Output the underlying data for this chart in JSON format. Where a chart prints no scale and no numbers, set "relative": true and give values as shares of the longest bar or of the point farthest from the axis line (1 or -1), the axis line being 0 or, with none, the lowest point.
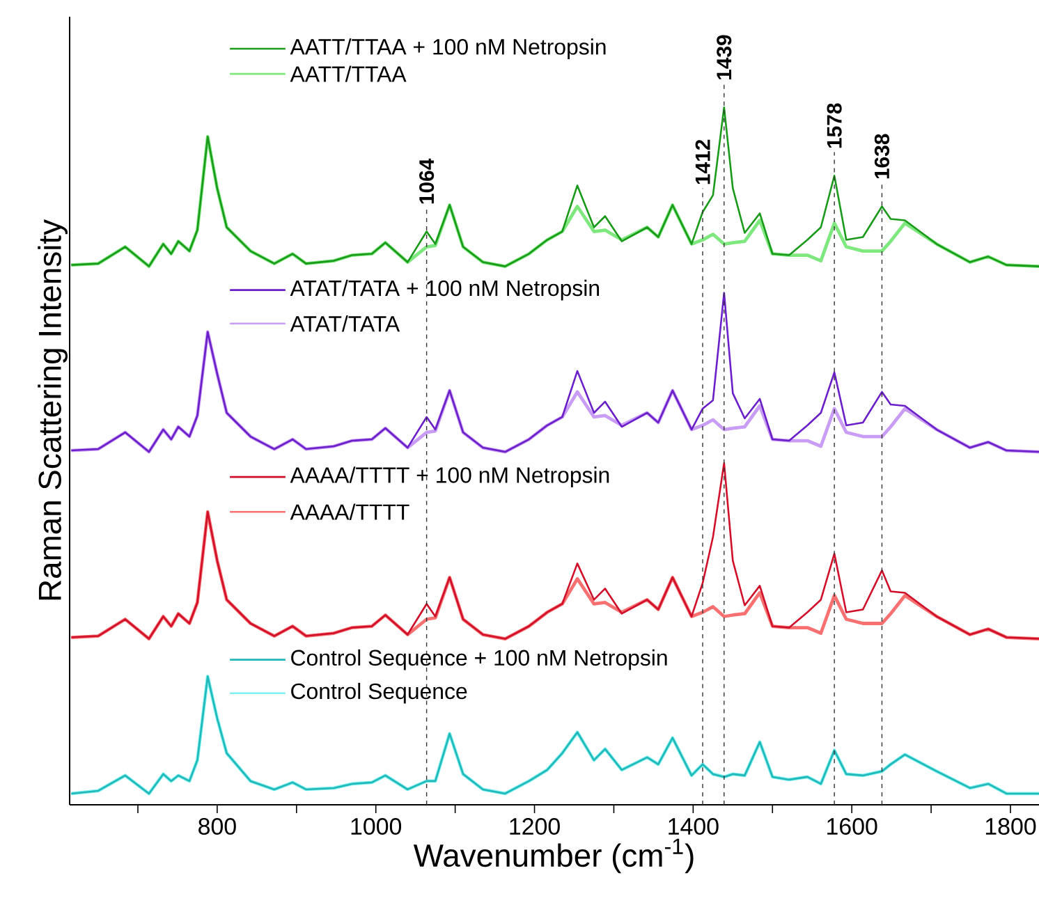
{
  "chart_data": {
    "type": "line",
    "relative": true,
    "xlabel": "Wavenumber (cm$^{-1}$)",
    "ylabel": "Raman Scattering Intensity",
    "legend": "top left",
    "xlim": [
      614,
      1836
    ],
    "xticks": [
      {
        "value": 700,
        "label": null
      },
      800,
      {
        "value": 900,
        "label": null
      },
      1000,
      {
        "value": 1100,
        "label": null
      },
      1200,
      {
        "value": 1300,
        "label": null
      },
      1400,
      {
        "value": 1500,
        "label": null
      },
      1600,
      {
        "value": 1700,
        "label": null
      },
      1800
    ],
    "x": [
      616,
      650,
      684,
      714,
      732,
      742,
      751,
      765,
      775,
      788,
      800,
      812,
      842,
      872,
      895,
      912,
      947,
      970,
      995,
      1012,
      1040,
      1064,
      1075,
      1093,
      1110,
      1135,
      1163,
      1193,
      1216,
      1235,
      1254,
      1275,
      1289,
      1310,
      1342,
      1356,
      1374,
      1398,
      1412,
      1425,
      1439,
      1450,
      1465,
      1484,
      1500,
      1521,
      1544,
      1561,
      1578,
      1593,
      1614,
      1638,
      1649,
      1667,
      1707,
      1749,
      1772,
      1795,
      1836
    ],
    "series": [
      {
        "name": "AATT/TTAA + 100 nM Netropsin",
        "color": "#1a9a1a",
        "values": [
          0.774,
          0.776,
          0.8,
          0.772,
          0.804,
          0.79,
          0.808,
          0.794,
          0.824,
          0.958,
          0.884,
          0.828,
          0.794,
          0.776,
          0.79,
          0.776,
          0.78,
          0.788,
          0.79,
          0.806,
          0.778,
          0.822,
          0.804,
          0.86,
          0.8,
          0.778,
          0.772,
          0.79,
          0.81,
          0.822,
          0.888,
          0.828,
          0.844,
          0.808,
          0.828,
          0.814,
          0.86,
          0.804,
          0.85,
          0.874,
          1.0,
          0.884,
          0.82,
          0.848,
          0.79,
          0.788,
          0.81,
          0.828,
          0.902,
          0.81,
          0.814,
          0.858,
          0.84,
          0.838,
          0.804,
          0.778,
          0.786,
          0.774,
          0.772
        ]
      },
      {
        "name": "AATT/TTAA",
        "color": "#7ee87e",
        "values": [
          0.774,
          0.776,
          0.8,
          0.772,
          0.804,
          0.79,
          0.808,
          0.794,
          0.824,
          0.958,
          0.884,
          0.828,
          0.794,
          0.776,
          0.79,
          0.776,
          0.78,
          0.788,
          0.79,
          0.806,
          0.778,
          0.8,
          0.802,
          0.86,
          0.8,
          0.778,
          0.772,
          0.79,
          0.81,
          0.822,
          0.858,
          0.822,
          0.824,
          0.81,
          0.828,
          0.814,
          0.86,
          0.804,
          0.81,
          0.818,
          0.804,
          0.806,
          0.808,
          0.838,
          0.79,
          0.788,
          0.788,
          0.78,
          0.834,
          0.8,
          0.794,
          0.794,
          0.808,
          0.834,
          0.804,
          0.778,
          0.786,
          0.774,
          0.772
        ]
      },
      {
        "name": "ATAT/TATA + 100 nM Netropsin",
        "color": "#6a1fc8",
        "values": [
          0.508,
          0.51,
          0.534,
          0.506,
          0.538,
          0.524,
          0.542,
          0.528,
          0.558,
          0.678,
          0.618,
          0.562,
          0.528,
          0.51,
          0.524,
          0.51,
          0.514,
          0.522,
          0.524,
          0.54,
          0.512,
          0.556,
          0.538,
          0.594,
          0.534,
          0.512,
          0.506,
          0.524,
          0.544,
          0.556,
          0.622,
          0.562,
          0.578,
          0.542,
          0.562,
          0.548,
          0.594,
          0.538,
          0.568,
          0.58,
          0.734,
          0.59,
          0.554,
          0.582,
          0.524,
          0.522,
          0.544,
          0.562,
          0.62,
          0.544,
          0.548,
          0.592,
          0.574,
          0.572,
          0.538,
          0.512,
          0.52,
          0.508,
          0.506
        ]
      },
      {
        "name": "ATAT/TATA",
        "color": "#c99cf5",
        "values": [
          0.508,
          0.51,
          0.534,
          0.506,
          0.538,
          0.524,
          0.542,
          0.528,
          0.558,
          0.678,
          0.618,
          0.562,
          0.528,
          0.51,
          0.524,
          0.51,
          0.514,
          0.522,
          0.524,
          0.54,
          0.512,
          0.534,
          0.536,
          0.594,
          0.534,
          0.512,
          0.506,
          0.524,
          0.544,
          0.556,
          0.592,
          0.556,
          0.558,
          0.544,
          0.562,
          0.548,
          0.594,
          0.538,
          0.544,
          0.552,
          0.538,
          0.54,
          0.542,
          0.572,
          0.524,
          0.522,
          0.522,
          0.514,
          0.568,
          0.534,
          0.528,
          0.528,
          0.542,
          0.568,
          0.538,
          0.512,
          0.52,
          0.508,
          0.506
        ]
      },
      {
        "name": "AAAA/TTTT + 100 nM Netropsin",
        "color": "#d0102a",
        "values": [
          0.24,
          0.242,
          0.266,
          0.238,
          0.27,
          0.256,
          0.274,
          0.26,
          0.29,
          0.42,
          0.35,
          0.294,
          0.26,
          0.242,
          0.256,
          0.242,
          0.246,
          0.254,
          0.256,
          0.272,
          0.244,
          0.288,
          0.27,
          0.326,
          0.266,
          0.244,
          0.238,
          0.256,
          0.276,
          0.288,
          0.346,
          0.294,
          0.31,
          0.274,
          0.294,
          0.28,
          0.326,
          0.27,
          0.318,
          0.384,
          0.49,
          0.35,
          0.286,
          0.314,
          0.256,
          0.254,
          0.276,
          0.294,
          0.36,
          0.276,
          0.28,
          0.336,
          0.306,
          0.304,
          0.27,
          0.244,
          0.252,
          0.24,
          0.238
        ]
      },
      {
        "name": "AAAA/TTTT",
        "color": "#f87070",
        "values": [
          0.24,
          0.242,
          0.266,
          0.238,
          0.27,
          0.256,
          0.274,
          0.26,
          0.29,
          0.42,
          0.35,
          0.294,
          0.26,
          0.242,
          0.256,
          0.242,
          0.246,
          0.254,
          0.256,
          0.272,
          0.244,
          0.266,
          0.268,
          0.326,
          0.266,
          0.244,
          0.238,
          0.256,
          0.276,
          0.288,
          0.324,
          0.288,
          0.29,
          0.276,
          0.294,
          0.28,
          0.326,
          0.27,
          0.276,
          0.284,
          0.27,
          0.272,
          0.274,
          0.304,
          0.256,
          0.254,
          0.254,
          0.246,
          0.3,
          0.266,
          0.26,
          0.26,
          0.274,
          0.3,
          0.27,
          0.244,
          0.252,
          0.24,
          0.238
        ]
      },
      {
        "name": "Control Sequence + 100 nM Netropsin",
        "color": "#20b8b8",
        "values": [
          0.016,
          0.02,
          0.042,
          0.016,
          0.044,
          0.034,
          0.042,
          0.034,
          0.064,
          0.184,
          0.124,
          0.074,
          0.034,
          0.022,
          0.032,
          0.022,
          0.024,
          0.03,
          0.032,
          0.042,
          0.022,
          0.034,
          0.034,
          0.102,
          0.044,
          0.022,
          0.016,
          0.034,
          0.05,
          0.074,
          0.104,
          0.064,
          0.08,
          0.05,
          0.068,
          0.058,
          0.096,
          0.042,
          0.058,
          0.044,
          0.04,
          0.044,
          0.042,
          0.09,
          0.04,
          0.036,
          0.04,
          0.03,
          0.078,
          0.044,
          0.042,
          0.048,
          0.058,
          0.072,
          0.048,
          0.024,
          0.03,
          0.016,
          0.016
        ]
      },
      {
        "name": "Control Sequence",
        "color": "#80f0f0",
        "values": [
          0.016,
          0.02,
          0.042,
          0.016,
          0.044,
          0.034,
          0.042,
          0.034,
          0.064,
          0.184,
          0.124,
          0.074,
          0.034,
          0.022,
          0.032,
          0.022,
          0.024,
          0.03,
          0.032,
          0.042,
          0.022,
          0.034,
          0.034,
          0.102,
          0.044,
          0.022,
          0.016,
          0.034,
          0.05,
          0.074,
          0.104,
          0.064,
          0.08,
          0.05,
          0.068,
          0.058,
          0.096,
          0.042,
          0.058,
          0.044,
          0.04,
          0.044,
          0.042,
          0.09,
          0.04,
          0.036,
          0.04,
          0.03,
          0.078,
          0.044,
          0.042,
          0.048,
          0.058,
          0.072,
          0.048,
          0.024,
          0.03,
          0.016,
          0.016
        ]
      }
    ],
    "ref_lines": [
      {
        "axis": "x",
        "value": 1064,
        "label": "1064",
        "line_style": "dashed",
        "color": "#333333"
      },
      {
        "axis": "x",
        "value": 1412,
        "label": "1412",
        "line_style": "dashed",
        "color": "#333333"
      },
      {
        "axis": "x",
        "value": 1439,
        "label": "1439",
        "line_style": "dashed",
        "color": "#333333"
      },
      {
        "axis": "x",
        "value": 1578,
        "label": "1578",
        "line_style": "dashed",
        "color": "#333333"
      },
      {
        "axis": "x",
        "value": 1638,
        "label": "1638",
        "line_style": "dashed",
        "color": "#333333"
      }
    ]
  }
}
